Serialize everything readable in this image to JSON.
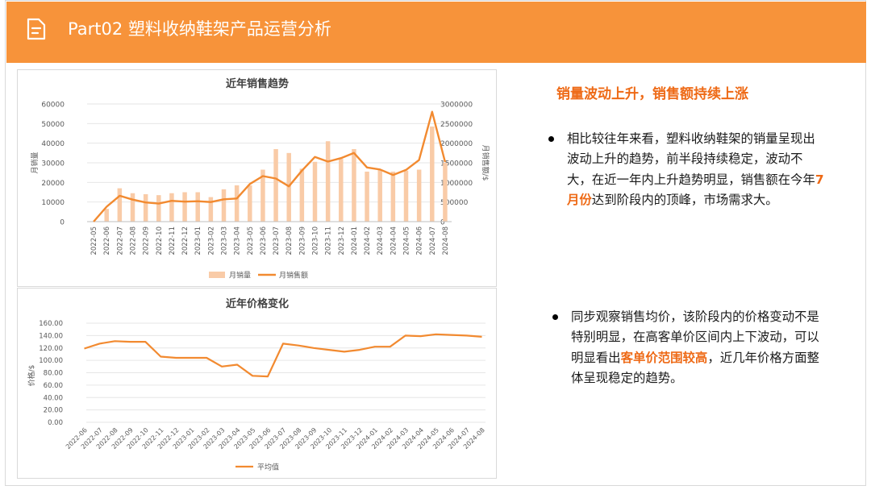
{
  "header": {
    "title": "Part02 塑料收纳鞋架产品运营分析",
    "bg_color": "#f7933a",
    "icon": "document-icon"
  },
  "sales_chart": {
    "title": "近年销售趋势",
    "ylabel_left": "月销量",
    "ylabel_right": "月销售额/$",
    "legend": [
      "月销量",
      "月销售额"
    ],
    "left_ticks": [
      "0",
      "10000",
      "20000",
      "30000",
      "40000",
      "50000",
      "60000"
    ],
    "right_ticks": [
      "0",
      "500000",
      "1000000",
      "1500000",
      "2000000",
      "2500000",
      "3000000"
    ]
  },
  "price_chart": {
    "title": "近年价格变化",
    "ylabel": "价格/$",
    "legend": [
      "平均值"
    ],
    "y_ticks": [
      "0.00",
      "20.00",
      "40.00",
      "60.00",
      "80.00",
      "100.00",
      "120.00",
      "140.00",
      "160.00"
    ]
  },
  "chart_data": [
    {
      "type": "bar+line",
      "title": "近年销售趋势",
      "categories": [
        "2022-05",
        "2022-06",
        "2022-07",
        "2022-08",
        "2022-09",
        "2022-10",
        "2022-11",
        "2022-12",
        "2023-01",
        "2023-02",
        "2023-03",
        "2023-04",
        "2023-05",
        "2023-06",
        "2023-07",
        "2023-08",
        "2023-09",
        "2023-10",
        "2023-11",
        "2023-12",
        "2024-01",
        "2024-02",
        "2024-03",
        "2024-04",
        "2024-05",
        "2024-06",
        "2024-07",
        "2024-08"
      ],
      "series": [
        {
          "name": "月销量",
          "kind": "bar",
          "axis": "left",
          "color": "#f9cba7",
          "values": [
            0,
            6500,
            17000,
            14500,
            14000,
            13500,
            14500,
            15000,
            15000,
            12500,
            16500,
            18500,
            18500,
            26500,
            37000,
            35000,
            27000,
            30500,
            41000,
            32000,
            37000,
            25500,
            26500,
            25500,
            26000,
            26500,
            48500,
            30000
          ]
        },
        {
          "name": "月销售额",
          "kind": "line",
          "axis": "right",
          "color": "#f28a30",
          "values": [
            0,
            380000,
            660000,
            560000,
            490000,
            460000,
            530000,
            510000,
            520000,
            500000,
            570000,
            590000,
            960000,
            1160000,
            1100000,
            900000,
            1300000,
            1650000,
            1530000,
            1620000,
            1750000,
            1380000,
            1330000,
            1190000,
            1320000,
            1570000,
            2800000,
            1520000
          ]
        }
      ],
      "ylim_left": [
        0,
        60000
      ],
      "ylim_right": [
        0,
        3000000
      ],
      "ylabel_left": "月销量",
      "ylabel_right": "月销售额/$",
      "legend_position": "bottom"
    },
    {
      "type": "line",
      "title": "近年价格变化",
      "categories": [
        "2022-06",
        "2022-07",
        "2022-08",
        "2022-09",
        "2022-10",
        "2022-11",
        "2022-12",
        "2023-01",
        "2023-02",
        "2023-03",
        "2023-04",
        "2023-05",
        "2023-06",
        "2023-07",
        "2023-08",
        "2023-09",
        "2023-10",
        "2023-11",
        "2023-12",
        "2024-01",
        "2024-02",
        "2024-03",
        "2024-04",
        "2024-05",
        "2024-06",
        "2024-07",
        "2024-08"
      ],
      "series": [
        {
          "name": "平均值",
          "color": "#f28a30",
          "values": [
            119,
            127,
            131,
            130,
            130,
            106,
            104,
            104,
            104,
            90,
            93,
            75,
            74,
            127,
            124,
            120,
            117,
            114,
            117,
            122,
            122,
            140,
            139,
            142,
            141,
            140,
            138
          ]
        }
      ],
      "ylim": [
        0,
        160
      ],
      "ylabel": "价格/$",
      "legend_position": "bottom"
    }
  ],
  "right_panel": {
    "subheading": "销量波动上升，销售额持续上涨",
    "bullet1": {
      "before": "相比较往年来看，塑料收纳鞋架的销量呈现出波动上升的趋势，前半段持续稳定，波动不大，在近一年内上升趋势明显，销售额在今年",
      "highlight": "7月份",
      "after": "达到阶段内的顶峰，市场需求大。"
    },
    "bullet2": {
      "before": "同步观察销售均价，该阶段内的价格变动不是特别明显，在高客单价区间内上下波动，可以明显看出",
      "highlight": "客单价范围较高",
      "after": "，近几年价格方面整体呈现稳定的趋势。"
    },
    "highlight_color": "#ee6a16"
  }
}
